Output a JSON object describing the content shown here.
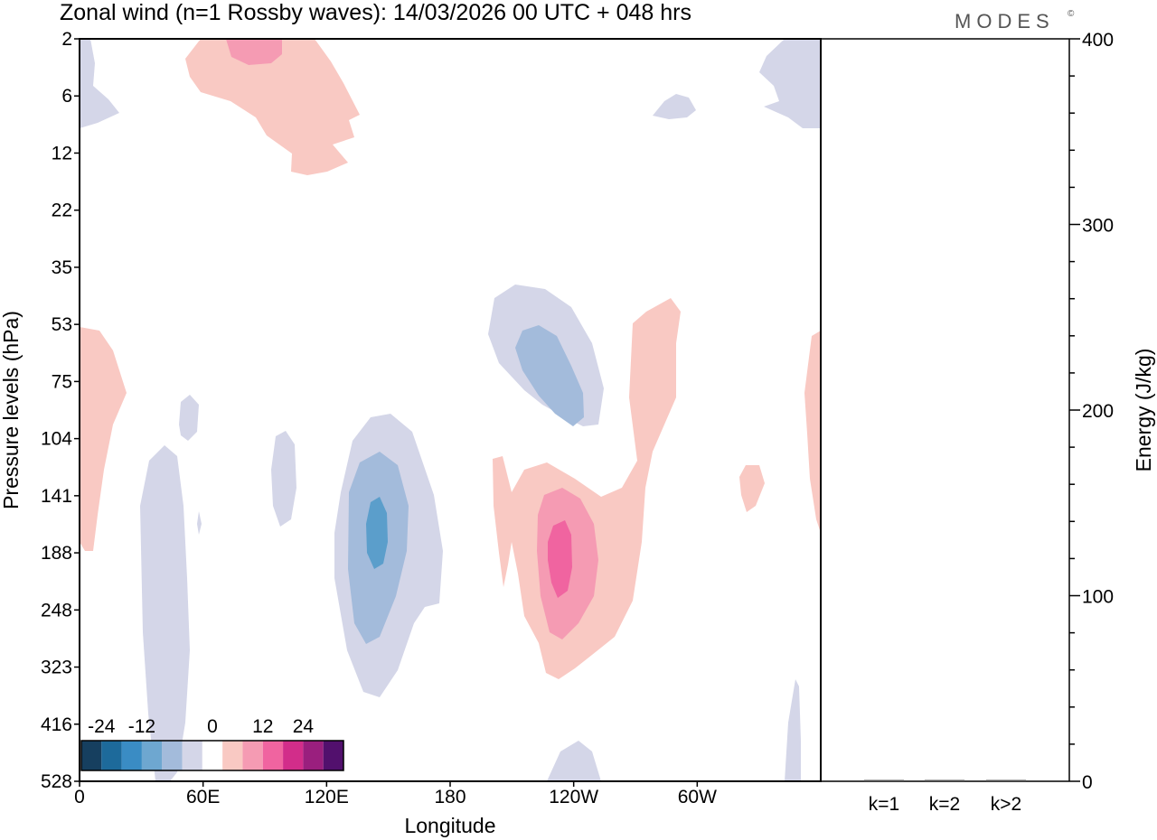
{
  "title": "Zonal wind (n=1 Rossby waves):  14/03/2026  00 UTC  + 048 hrs",
  "logo": "MODES",
  "logo_mark": "©",
  "colors": {
    "neg3": "#a3bbdb",
    "neg1": "#d4d6e8",
    "neg4": "#5b9ecb",
    "pos1": "#f9c9c3",
    "pos2": "#f59bb3",
    "pos3": "#f064a0",
    "axis": "#000000"
  },
  "chart_data": [
    {
      "type": "heatmap",
      "title": "Zonal wind (n=1 Rossby waves):  14/03/2026  00 UTC  + 048 hrs",
      "xlabel": "Longitude",
      "ylabel": "Pressure levels (hPa)",
      "x_ticks": [
        "0",
        "60E",
        "120E",
        "180",
        "120W",
        "60W"
      ],
      "y_ticks": [
        "2",
        "6",
        "12",
        "22",
        "35",
        "53",
        "75",
        "104",
        "141",
        "188",
        "248",
        "323",
        "416",
        "528"
      ],
      "colorbar": {
        "tick_labels": [
          "-24",
          "-12",
          "0",
          "12",
          "24"
        ],
        "levels": [
          -30,
          -24,
          -18,
          -12,
          -6,
          -3,
          3,
          6,
          12,
          18,
          24,
          30
        ],
        "colors": [
          "#163f5f",
          "#1d6a9b",
          "#3a8cc4",
          "#6ea7d0",
          "#a3bbdb",
          "#d4d6e8",
          "#ffffff",
          "#f9c9c3",
          "#f59bb3",
          "#f064a0",
          "#d22d8a",
          "#9a1f7e",
          "#52106d"
        ]
      },
      "features": [
        {
          "name": "pos-upper-60E",
          "sign": "positive",
          "peak_level": 2,
          "longitude_center": "75E",
          "max_shade": 2
        },
        {
          "name": "neg-upper-left-edge",
          "sign": "negative",
          "peak_level": 6,
          "longitude_center": "5E",
          "max_shade": 1
        },
        {
          "name": "neg-upper-60W",
          "sign": "negative",
          "peak_level": 6,
          "longitude_center": "70W",
          "max_shade": 1
        },
        {
          "name": "neg-upper-right-edge",
          "sign": "negative",
          "peak_level": 4,
          "longitude_center": "30W",
          "max_shade": 1
        },
        {
          "name": "pos-left-edge",
          "sign": "positive",
          "peak_level": 104,
          "longitude_center": "5E",
          "max_shade": 1
        },
        {
          "name": "neg-40E-column",
          "sign": "negative",
          "peak_level": 248,
          "longitude_center": "40E",
          "max_shade": 1
        },
        {
          "name": "neg-140E-core",
          "sign": "negative",
          "peak_level": 188,
          "longitude_center": "145E",
          "max_shade": 4
        },
        {
          "name": "neg-150W-upper",
          "sign": "negative",
          "peak_level": 75,
          "longitude_center": "135W",
          "max_shade": 3
        },
        {
          "name": "pos-120W-core",
          "sign": "positive",
          "peak_level": 188,
          "longitude_center": "115W",
          "max_shade": 3
        },
        {
          "name": "pos-80W-tongue",
          "sign": "positive",
          "peak_level": 53,
          "longitude_center": "95W",
          "max_shade": 1
        },
        {
          "name": "pos-right-edge",
          "sign": "positive",
          "peak_level": 104,
          "longitude_center": "0",
          "max_shade": 1
        }
      ]
    },
    {
      "type": "bar",
      "categories": [
        "k=1",
        "k=2",
        "k>2"
      ],
      "values": [
        0.5,
        0.3,
        0.5
      ],
      "ylabel": "Energy (J/kg)",
      "ylim": [
        0,
        400
      ],
      "y_ticks": [
        "0",
        "100",
        "200",
        "300",
        "400"
      ]
    }
  ]
}
